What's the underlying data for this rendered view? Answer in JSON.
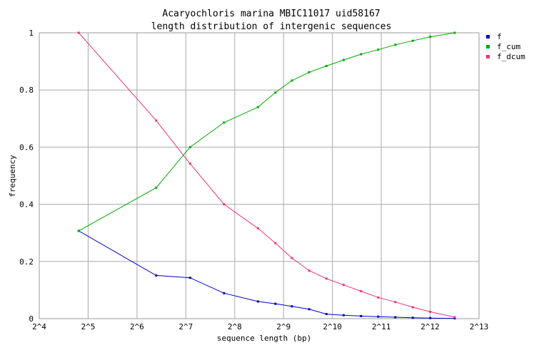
{
  "chart_data": {
    "type": "line",
    "title": "Acaryochloris marina MBIC11017 uid58167",
    "subtitle": "length distribution of intergenic sequences",
    "xlabel": "sequence length (bp)",
    "ylabel": "frequency",
    "x_scale": "log2",
    "x_ticks": [
      "2^4",
      "2^5",
      "2^6",
      "2^7",
      "2^8",
      "2^9",
      "2^10",
      "2^11",
      "2^12",
      "2^13"
    ],
    "y_ticks": [
      "0",
      "0.2",
      "0.4",
      "0.6",
      "0.8",
      "1"
    ],
    "xlim": [
      16,
      8192
    ],
    "ylim": [
      0,
      1
    ],
    "grid": true,
    "legend_position": "top-right",
    "series": [
      {
        "name": "f",
        "color": "#0000cc",
        "x": [
          28,
          84,
          136,
          220,
          356,
          456,
          576,
          736,
          940,
          1200,
          1536,
          1960,
          2500,
          3200,
          4100,
          5800
        ],
        "y": [
          0.307,
          0.151,
          0.143,
          0.089,
          0.06,
          0.052,
          0.043,
          0.033,
          0.016,
          0.012,
          0.009,
          0.007,
          0.005,
          0.003,
          0.002,
          0.001
        ]
      },
      {
        "name": "f_cum",
        "color": "#00aa00",
        "x": [
          28,
          84,
          136,
          220,
          356,
          456,
          576,
          736,
          940,
          1200,
          1536,
          1960,
          2500,
          3200,
          4100,
          5800
        ],
        "y": [
          0.307,
          0.458,
          0.6,
          0.686,
          0.74,
          0.791,
          0.833,
          0.862,
          0.884,
          0.905,
          0.925,
          0.941,
          0.958,
          0.972,
          0.986,
          1.0
        ]
      },
      {
        "name": "f_dcum",
        "color": "#ee3377",
        "x": [
          28,
          84,
          136,
          220,
          356,
          456,
          576,
          736,
          940,
          1200,
          1536,
          1960,
          2500,
          3200,
          4100,
          5800
        ],
        "y": [
          1.0,
          0.693,
          0.542,
          0.4,
          0.316,
          0.264,
          0.212,
          0.168,
          0.14,
          0.118,
          0.096,
          0.074,
          0.058,
          0.04,
          0.024,
          0.005
        ]
      }
    ]
  }
}
